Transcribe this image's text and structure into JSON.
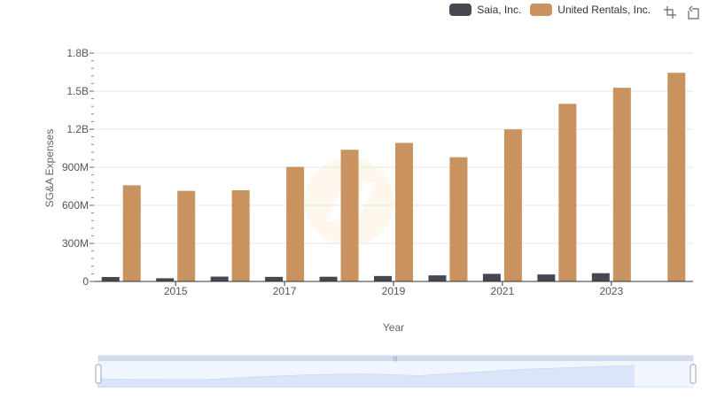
{
  "legend": {
    "items": [
      {
        "label": "Saia, Inc.",
        "color": "#474752"
      },
      {
        "label": "United Rentals, Inc.",
        "color": "#c9935f"
      }
    ]
  },
  "toolbar": {
    "zoom_icon": "zoom-icon",
    "restore_icon": "restore-icon"
  },
  "chart_data": {
    "type": "bar",
    "categories": [
      "2014",
      "2015",
      "2016",
      "2017",
      "2018",
      "2019",
      "2020",
      "2021",
      "2022",
      "2023",
      "2024"
    ],
    "x_tick_labels": [
      "2015",
      "2017",
      "2019",
      "2021",
      "2023"
    ],
    "series": [
      {
        "name": "Saia, Inc.",
        "color": "#474752",
        "values": [
          35000000,
          25000000,
          38000000,
          36000000,
          37000000,
          43000000,
          48000000,
          60000000,
          55000000,
          65000000,
          null
        ]
      },
      {
        "name": "United Rentals, Inc.",
        "color": "#c9935f",
        "values": [
          758000000,
          714000000,
          719000000,
          903000000,
          1038000000,
          1092000000,
          979000000,
          1199000000,
          1400000000,
          1527000000,
          1645000000
        ]
      }
    ],
    "y_ticks": [
      {
        "value": 0,
        "label": "0"
      },
      {
        "value": 300000000,
        "label": "300M"
      },
      {
        "value": 600000000,
        "label": "600M"
      },
      {
        "value": 900000000,
        "label": "900M"
      },
      {
        "value": 1200000000,
        "label": "1.2B"
      },
      {
        "value": 1500000000,
        "label": "1.5B"
      },
      {
        "value": 1800000000,
        "label": "1.8B"
      }
    ],
    "ylim": [
      0,
      1800000000
    ],
    "xlabel": "Year",
    "ylabel": "SG&A Expenses",
    "grid": true,
    "legend_position": "top-right",
    "data_zoom": true
  }
}
